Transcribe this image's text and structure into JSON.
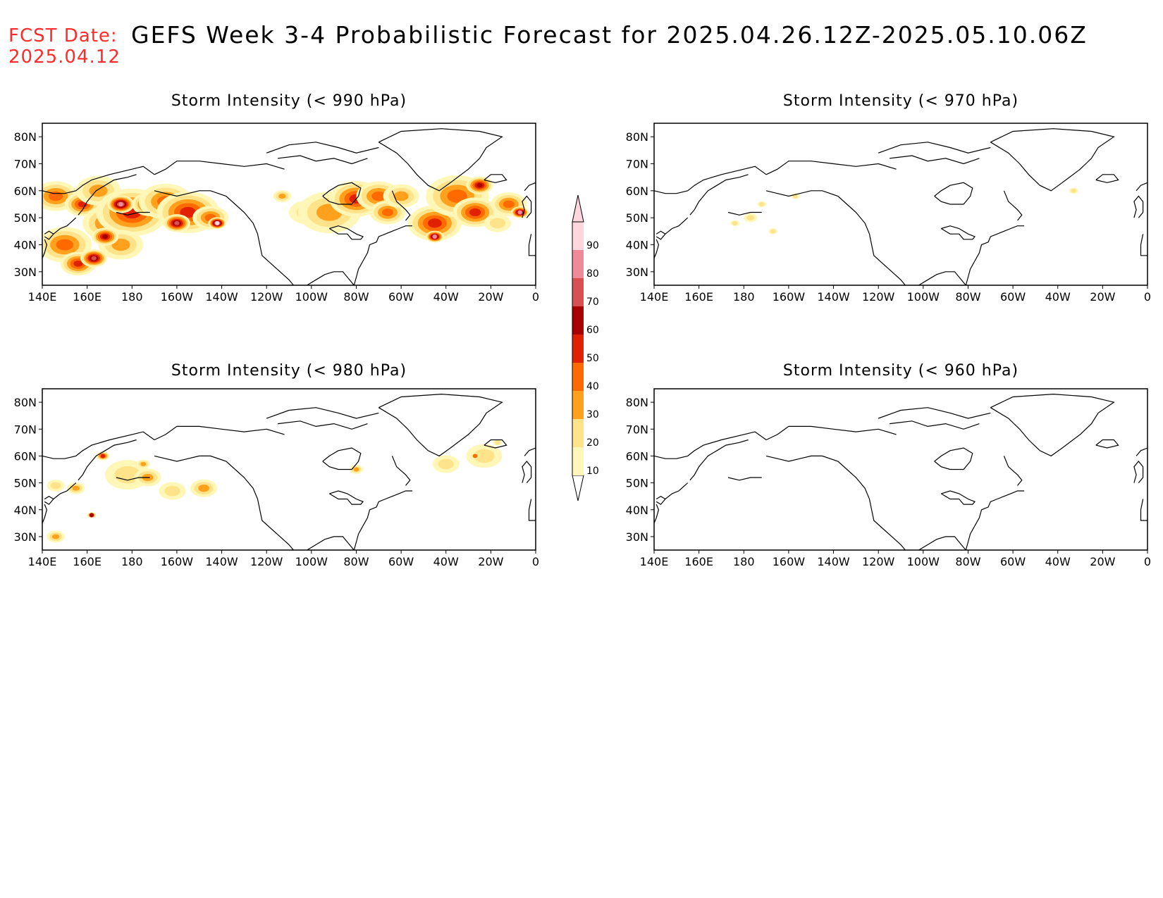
{
  "header": {
    "fcst_label": "FCST Date:",
    "fcst_date": "2025.04.12",
    "title": "GEFS Week 3-4 Probabilistic Forecast for 2025.04.26.12Z-2025.05.10.06Z"
  },
  "panels": [
    {
      "id": "p990",
      "title": "Storm Intensity (< 990 hPa)"
    },
    {
      "id": "p970",
      "title": "Storm Intensity (< 970 hPa)"
    },
    {
      "id": "p980",
      "title": "Storm Intensity (< 980 hPa)"
    },
    {
      "id": "p960",
      "title": "Storm Intensity (< 960 hPa)"
    }
  ],
  "axes": {
    "lon_ticks": [
      "140E",
      "160E",
      "180",
      "160W",
      "140W",
      "120W",
      "100W",
      "80W",
      "60W",
      "40W",
      "20W",
      "0"
    ],
    "lat_ticks": [
      "80N",
      "70N",
      "60N",
      "50N",
      "40N",
      "30N"
    ],
    "lat_values": [
      80,
      70,
      60,
      50,
      40,
      30
    ],
    "lat_range": [
      25,
      85
    ]
  },
  "colorbar": {
    "levels": [
      "10",
      "20",
      "30",
      "40",
      "50",
      "60",
      "70",
      "80",
      "90"
    ],
    "colors": [
      "#fff7b8",
      "#ffe38a",
      "#ffa11c",
      "#ff6a00",
      "#e02000",
      "#a80000",
      "#d95050",
      "#f08a9a",
      "#ffd6de"
    ]
  },
  "fields": {
    "p990": [
      {
        "lon": 146,
        "lat": 58,
        "r": 10,
        "v": 3
      },
      {
        "lon": 158,
        "lat": 55,
        "r": 8,
        "v": 4
      },
      {
        "lon": 165,
        "lat": 60,
        "r": 10,
        "v": 2
      },
      {
        "lon": 150,
        "lat": 40,
        "r": 12,
        "v": 3
      },
      {
        "lon": 156,
        "lat": 33,
        "r": 8,
        "v": 4
      },
      {
        "lon": 163,
        "lat": 35,
        "r": 6,
        "v": 6
      },
      {
        "lon": 170,
        "lat": 48,
        "r": 12,
        "v": 3
      },
      {
        "lon": 180,
        "lat": 52,
        "r": 16,
        "v": 4
      },
      {
        "lon": 188,
        "lat": 55,
        "r": 8,
        "v": 5
      },
      {
        "lon": 175,
        "lat": 55,
        "r": 6,
        "v": 7
      },
      {
        "lon": 195,
        "lat": 56,
        "r": 12,
        "v": 3
      },
      {
        "lon": 205,
        "lat": 52,
        "r": 14,
        "v": 4
      },
      {
        "lon": 200,
        "lat": 48,
        "r": 6,
        "v": 6
      },
      {
        "lon": 215,
        "lat": 50,
        "r": 8,
        "v": 3
      },
      {
        "lon": 218,
        "lat": 48,
        "r": 4,
        "v": 8
      },
      {
        "lon": 175,
        "lat": 40,
        "r": 10,
        "v": 2
      },
      {
        "lon": 168,
        "lat": 43,
        "r": 6,
        "v": 5
      },
      {
        "lon": 247,
        "lat": 58,
        "r": 4,
        "v": 2
      },
      {
        "lon": 258,
        "lat": 52,
        "r": 8,
        "v": 1
      },
      {
        "lon": 268,
        "lat": 52,
        "r": 14,
        "v": 2
      },
      {
        "lon": 280,
        "lat": 57,
        "r": 12,
        "v": 4
      },
      {
        "lon": 290,
        "lat": 58,
        "r": 10,
        "v": 3
      },
      {
        "lon": 294,
        "lat": 52,
        "r": 8,
        "v": 3
      },
      {
        "lon": 300,
        "lat": 58,
        "r": 8,
        "v": 2
      },
      {
        "lon": 315,
        "lat": 48,
        "r": 12,
        "v": 4
      },
      {
        "lon": 315,
        "lat": 43,
        "r": 4,
        "v": 7
      },
      {
        "lon": 325,
        "lat": 58,
        "r": 14,
        "v": 3
      },
      {
        "lon": 333,
        "lat": 52,
        "r": 10,
        "v": 4
      },
      {
        "lon": 335,
        "lat": 62,
        "r": 6,
        "v": 5
      },
      {
        "lon": 348,
        "lat": 55,
        "r": 8,
        "v": 3
      },
      {
        "lon": 353,
        "lat": 52,
        "r": 4,
        "v": 7
      },
      {
        "lon": 343,
        "lat": 48,
        "r": 6,
        "v": 1
      }
    ],
    "p970": [
      {
        "lon": 176,
        "lat": 48,
        "r": 2,
        "v": 1
      },
      {
        "lon": 183,
        "lat": 50,
        "r": 3,
        "v": 1
      },
      {
        "lon": 193,
        "lat": 45,
        "r": 2,
        "v": 1
      },
      {
        "lon": 188,
        "lat": 55,
        "r": 2,
        "v": 1
      },
      {
        "lon": 203,
        "lat": 58,
        "r": 2,
        "v": 1
      },
      {
        "lon": 327,
        "lat": 60,
        "r": 2,
        "v": 1
      }
    ],
    "p980": [
      {
        "lon": 146,
        "lat": 49,
        "r": 4,
        "v": 1
      },
      {
        "lon": 155,
        "lat": 48,
        "r": 4,
        "v": 2
      },
      {
        "lon": 146,
        "lat": 30,
        "r": 4,
        "v": 2
      },
      {
        "lon": 162,
        "lat": 38,
        "r": 2,
        "v": 5
      },
      {
        "lon": 167,
        "lat": 60,
        "r": 3,
        "v": 4
      },
      {
        "lon": 178,
        "lat": 53,
        "r": 10,
        "v": 1
      },
      {
        "lon": 187,
        "lat": 52,
        "r": 6,
        "v": 2
      },
      {
        "lon": 185,
        "lat": 57,
        "r": 3,
        "v": 2
      },
      {
        "lon": 198,
        "lat": 47,
        "r": 6,
        "v": 1
      },
      {
        "lon": 212,
        "lat": 48,
        "r": 6,
        "v": 2
      },
      {
        "lon": 280,
        "lat": 55,
        "r": 3,
        "v": 2
      },
      {
        "lon": 320,
        "lat": 57,
        "r": 6,
        "v": 1
      },
      {
        "lon": 337,
        "lat": 60,
        "r": 8,
        "v": 1
      },
      {
        "lon": 333,
        "lat": 60,
        "r": 2,
        "v": 3
      },
      {
        "lon": 343,
        "lat": 65,
        "r": 2,
        "v": 1
      }
    ],
    "p960": []
  }
}
